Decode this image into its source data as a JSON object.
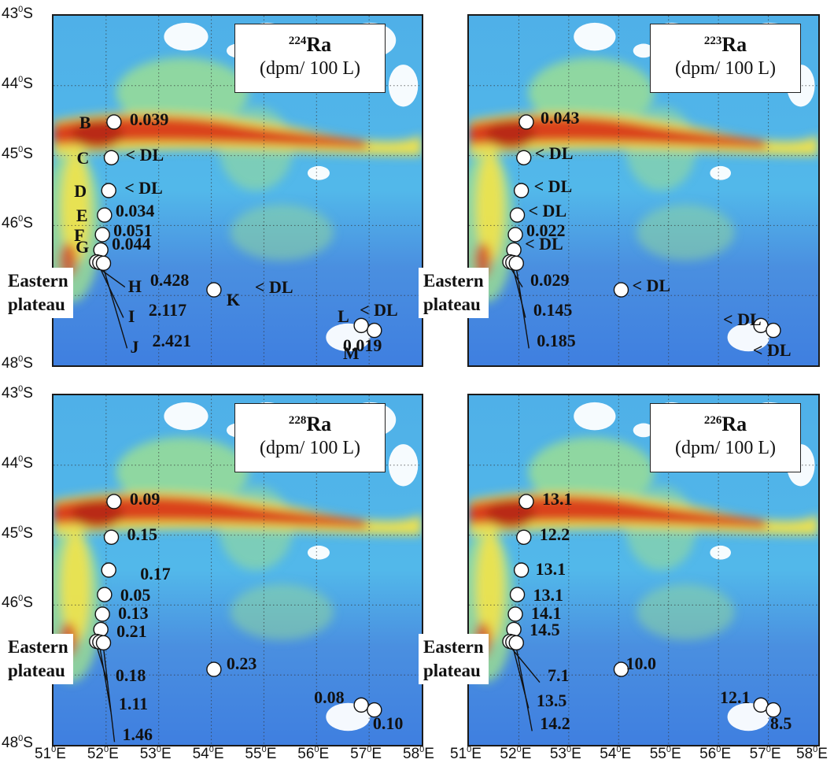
{
  "panels": [
    {
      "isotope_mass": "224",
      "isotope_symbol": "Ra",
      "unit": "(dpm/ 100 L)",
      "plateau_label_line1": "Eastern",
      "plateau_label_line2": "plateau",
      "values": {
        "B": "0.039",
        "C": "< DL",
        "D": "< DL",
        "E": "0.034",
        "F": "0.051",
        "G": "0.044",
        "H": "0.428",
        "I": "2.117",
        "J": "2.421",
        "K": "< DL",
        "L": "< DL",
        "M": "0.019"
      }
    },
    {
      "isotope_mass": "223",
      "isotope_symbol": "Ra",
      "unit": "(dpm/ 100 L)",
      "plateau_label_line1": "Eastern",
      "plateau_label_line2": "plateau",
      "values": {
        "B": "0.043",
        "C": "< DL",
        "D": "< DL",
        "E": "< DL",
        "F": "0.022",
        "G": "< DL",
        "H": "0.029",
        "I": "0.145",
        "J": "0.185",
        "K": "< DL",
        "L": "< DL",
        "M": "< DL"
      }
    },
    {
      "isotope_mass": "228",
      "isotope_symbol": "Ra",
      "unit": "(dpm/ 100 L)",
      "plateau_label_line1": "Eastern",
      "plateau_label_line2": "plateau",
      "values": {
        "B": "0.09",
        "C": "0.15",
        "D": "0.17",
        "E": "0.05",
        "F": "0.13",
        "G": "0.21",
        "H": "0.18",
        "I": "1.11",
        "J": "1.46",
        "K": "0.23",
        "L": "0.08",
        "M": "0.10"
      }
    },
    {
      "isotope_mass": "226",
      "isotope_symbol": "Ra",
      "unit": "(dpm/ 100 L)",
      "plateau_label_line1": "Eastern",
      "plateau_label_line2": "plateau",
      "values": {
        "B": "13.1",
        "C": "12.2",
        "D": "13.1",
        "E": "13.1",
        "F": "14.1",
        "G": "14.5",
        "H": "7.1",
        "I": "13.5",
        "J": "14.2",
        "K": "10.0",
        "L": "12.1",
        "M": "8.5"
      }
    }
  ],
  "station_ids": [
    "B",
    "C",
    "D",
    "E",
    "F",
    "G",
    "H",
    "I",
    "J",
    "K",
    "L",
    "M"
  ],
  "stations": {
    "B": {
      "lon": 52.15,
      "lat": -44.52
    },
    "C": {
      "lon": 52.1,
      "lat": -45.03
    },
    "D": {
      "lon": 52.05,
      "lat": -45.5
    },
    "E": {
      "lon": 51.97,
      "lat": -45.85
    },
    "F": {
      "lon": 51.93,
      "lat": -46.13
    },
    "G": {
      "lon": 51.9,
      "lat": -46.35
    },
    "H": {
      "lon": 51.82,
      "lat": -46.52
    },
    "I": {
      "lon": 51.88,
      "lat": -46.53
    },
    "J": {
      "lon": 51.95,
      "lat": -46.54
    },
    "K": {
      "lon": 54.05,
      "lat": -46.92
    },
    "L": {
      "lon": 56.85,
      "lat": -47.43
    },
    "M": {
      "lon": 57.1,
      "lat": -47.5
    }
  },
  "axes": {
    "lat_labels": [
      "43",
      "44",
      "45",
      "46",
      "48"
    ],
    "lat_suffix": "S",
    "lon_labels": [
      "51",
      "52",
      "53",
      "54",
      "55",
      "56",
      "57",
      "58"
    ],
    "lon_suffix": "E",
    "degree_symbol": "0"
  },
  "colors": {
    "ocean_deep": "#3f7fe0",
    "ocean_mid": "#4fb0e8",
    "front_green": "#9fe08f",
    "front_yellow": "#f2e24a",
    "front_red": "#d93a1c",
    "cloud_white": "#ffffff"
  }
}
